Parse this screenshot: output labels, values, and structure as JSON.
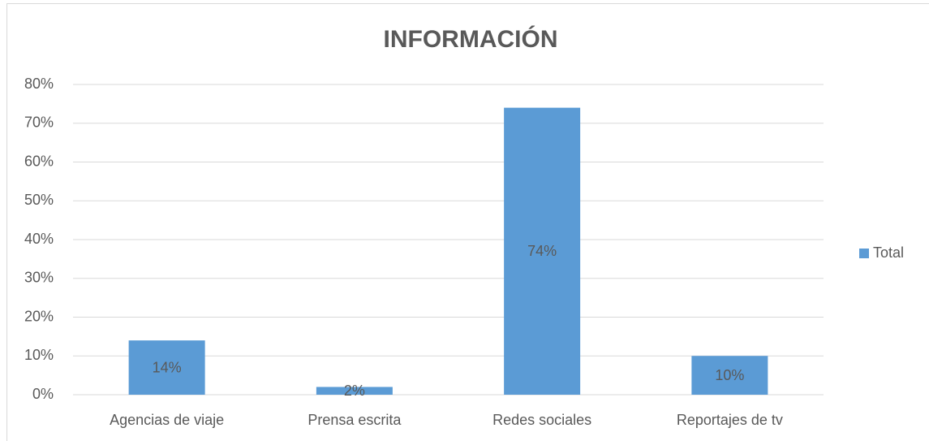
{
  "chart_data": {
    "type": "bar",
    "title": "INFORMACIÓN",
    "categories": [
      "Agencias de viaje",
      "Prensa escrita",
      "Redes sociales",
      "Reportajes de tv"
    ],
    "series": [
      {
        "name": "Total",
        "color": "#5b9bd5",
        "values": [
          14,
          2,
          74,
          10
        ],
        "value_labels": [
          "14%",
          "2%",
          "74%",
          "10%"
        ]
      }
    ],
    "ylim": [
      0,
      80
    ],
    "yticks": [
      {
        "value": 0,
        "label": "0%"
      },
      {
        "value": 10,
        "label": "10%"
      },
      {
        "value": 20,
        "label": "20%"
      },
      {
        "value": 30,
        "label": "30%"
      },
      {
        "value": 40,
        "label": "40%"
      },
      {
        "value": 50,
        "label": "50%"
      },
      {
        "value": 60,
        "label": "60%"
      },
      {
        "value": 70,
        "label": "70%"
      },
      {
        "value": 80,
        "label": "80%"
      }
    ],
    "grid": true,
    "legend": "right"
  }
}
